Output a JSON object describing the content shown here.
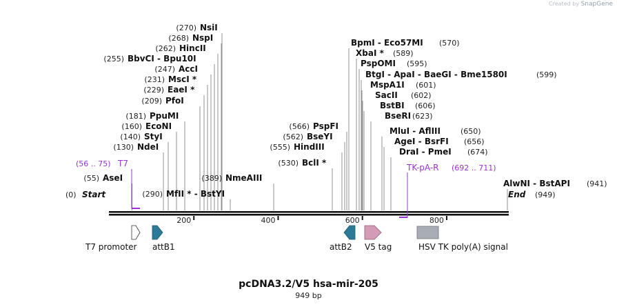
{
  "header": {
    "credit_prefix": "Created by",
    "credit_app": "SnapGene"
  },
  "map": {
    "title": "pcDNA3.2/V5 hsa-mir-205",
    "length_label": "949 bp",
    "start_label": "Start",
    "end_label": "End",
    "start_pos": "(0)",
    "end_pos": "(949)",
    "length_bp": 949,
    "ticks": [
      200,
      400,
      600,
      800
    ]
  },
  "colors": {
    "primer": "#9b30d9",
    "line": "#555555",
    "backbone": "#111111",
    "attB": "#2b7a96",
    "v5": "#d49bb6",
    "hsv": "#a9aeb5",
    "t7promoter": "#ffffff"
  },
  "sites": [
    {
      "name": "AseI",
      "pos": "(55)",
      "bp": 55
    },
    {
      "name": "NdeI",
      "pos": "(130)",
      "bp": 130
    },
    {
      "name": "StyI",
      "pos": "(140)",
      "bp": 140
    },
    {
      "name": "EcoNI",
      "pos": "(160)",
      "bp": 160
    },
    {
      "name": "PpuMI",
      "pos": "(181)",
      "bp": 181
    },
    {
      "name": "PfoI",
      "pos": "(209)",
      "bp": 209
    },
    {
      "name": "EaeI *",
      "pos": "(229)",
      "bp": 229
    },
    {
      "name": "MscI *",
      "pos": "(231)",
      "bp": 231
    },
    {
      "name": "AccI",
      "pos": "(247)",
      "bp": 247
    },
    {
      "name": "BbvCI  - Bpu10I",
      "pos": "(255)",
      "bp": 255
    },
    {
      "name": "HincII",
      "pos": "(262)",
      "bp": 262
    },
    {
      "name": "NspI",
      "pos": "(268)",
      "bp": 268
    },
    {
      "name": "NsiI",
      "pos": "(270)",
      "bp": 270
    },
    {
      "name": "MfII *  - BstYI",
      "pos": "(290)",
      "bp": 290
    },
    {
      "name": "NmeAIII",
      "pos": "(389)",
      "bp": 389
    },
    {
      "name": "BclI *",
      "pos": "(530)",
      "bp": 530
    },
    {
      "name": "HindIII",
      "pos": "(555)",
      "bp": 555
    },
    {
      "name": "BseYI",
      "pos": "(562)",
      "bp": 562
    },
    {
      "name": "PspFI",
      "pos": "(566)",
      "bp": 566
    },
    {
      "name": "BpmI  - Eco57MI",
      "pos": "(570)",
      "bp": 570
    },
    {
      "name": "XbaI *",
      "pos": "(589)",
      "bp": 589
    },
    {
      "name": "PspOMI",
      "pos": "(595)",
      "bp": 595
    },
    {
      "name": "BtgI  - ApaI  - BaeGI  - Bme1580I",
      "pos": "(599)",
      "bp": 599
    },
    {
      "name": "MspA1I",
      "pos": "(601)",
      "bp": 601
    },
    {
      "name": "SacII",
      "pos": "(602)",
      "bp": 602
    },
    {
      "name": "BstBI",
      "pos": "(606)",
      "bp": 606
    },
    {
      "name": "BseRI",
      "pos": "(623)",
      "bp": 623
    },
    {
      "name": "MluI  - AflIII",
      "pos": "(650)",
      "bp": 650
    },
    {
      "name": "AgeI  - BsrFI",
      "pos": "(656)",
      "bp": 656
    },
    {
      "name": "DraI  - PmeI",
      "pos": "(674)",
      "bp": 674
    },
    {
      "name": "AlwNI  - BstAPI",
      "pos": "(941)",
      "bp": 941
    }
  ],
  "primers": [
    {
      "name": "T7",
      "range": "(56 .. 75)"
    },
    {
      "name": "TK-pA-R",
      "range": "(692 .. 711)"
    }
  ],
  "features": [
    {
      "name": "T7 promoter",
      "type": "t7promoter"
    },
    {
      "name": "attB1",
      "type": "attB"
    },
    {
      "name": "attB2",
      "type": "attB"
    },
    {
      "name": "V5 tag",
      "type": "v5"
    },
    {
      "name": "HSV TK poly(A) signal",
      "type": "hsv"
    }
  ]
}
